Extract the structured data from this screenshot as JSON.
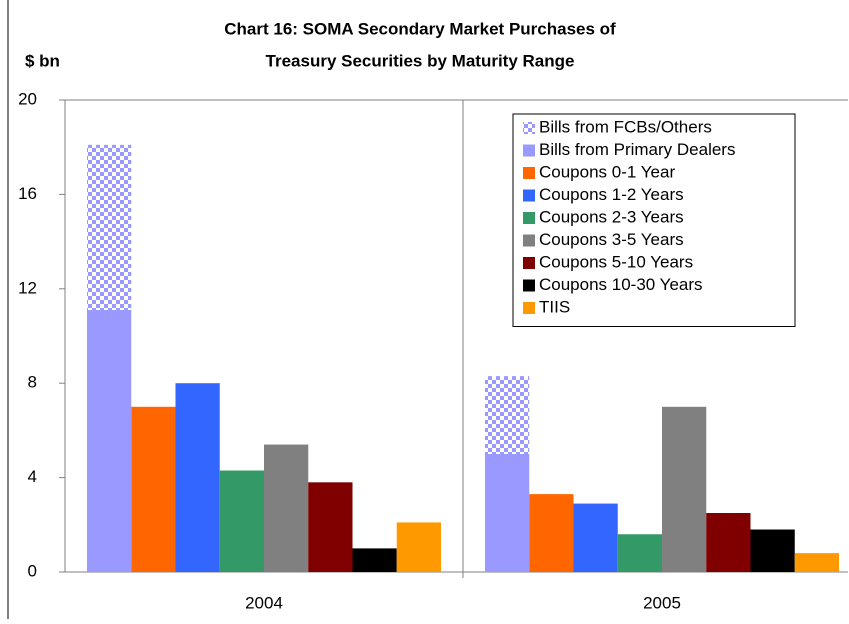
{
  "chart_data": {
    "type": "bar",
    "title_lines": [
      "Chart 16:  SOMA Secondary Market Purchases of",
      "Treasury Securities by Maturity Range"
    ],
    "y_label": "$ bn",
    "categories": [
      "2004",
      "2005"
    ],
    "series": [
      {
        "name": "Bills from FCBs/Others",
        "color": "#9999ff",
        "pattern": "checker",
        "stacked": true,
        "values": [
          7.0,
          3.3
        ]
      },
      {
        "name": "Bills from Primary Dealers",
        "color": "#9999ff",
        "values": [
          11.1,
          5.0
        ]
      },
      {
        "name": "Coupons 0-1 Year",
        "color": "#ff6600",
        "values": [
          7.0,
          3.3
        ]
      },
      {
        "name": "Coupons 1-2 Years",
        "color": "#3366ff",
        "values": [
          8.0,
          2.9
        ]
      },
      {
        "name": "Coupons 2-3 Years",
        "color": "#339966",
        "values": [
          4.3,
          1.6
        ]
      },
      {
        "name": "Coupons 3-5 Years",
        "color": "#808080",
        "values": [
          5.4,
          7.0
        ]
      },
      {
        "name": "Coupons 5-10 Years",
        "color": "#800000",
        "values": [
          3.8,
          2.5
        ]
      },
      {
        "name": "Coupons 10-30 Years",
        "color": "#000000",
        "values": [
          1.0,
          1.8
        ]
      },
      {
        "name": "TIIS",
        "color": "#ff9900",
        "values": [
          2.1,
          0.8
        ]
      }
    ],
    "ylim": [
      0,
      20
    ],
    "yticks": [
      0,
      4,
      8,
      12,
      16,
      20
    ],
    "grid": false,
    "legend": "upper right"
  }
}
